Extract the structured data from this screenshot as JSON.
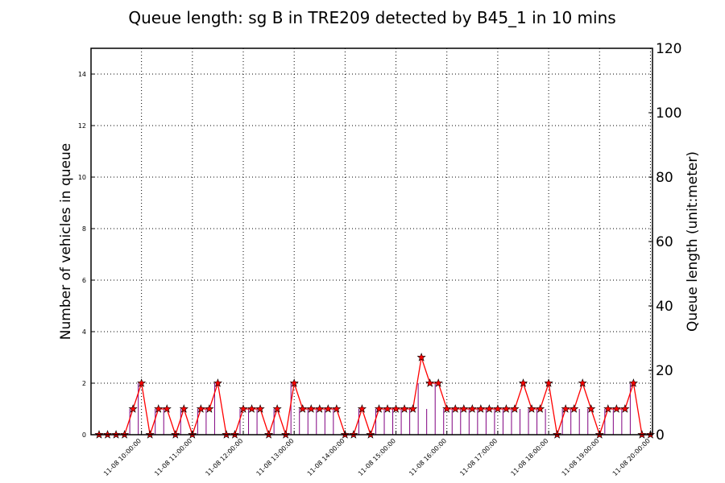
{
  "chart_data": {
    "type": "line",
    "title": "Queue length: sg B in TRE209 detected by B45_1 in 10 mins",
    "ylabel": "Number of vehicles in queue",
    "y2label": "Queue length (unit:meter)",
    "ylim": [
      0,
      15
    ],
    "y2lim": [
      0,
      120
    ],
    "yticks": [
      "0",
      "2",
      "4",
      "6",
      "8",
      "10",
      "12",
      "14"
    ],
    "y2ticks": [
      "0",
      "20",
      "40",
      "60",
      "80",
      "100",
      "120"
    ],
    "xticks": [
      "11-08 10:00:00",
      "11-08 11:00:00",
      "11-08 12:00:00",
      "11-08 13:00:00",
      "11-08 14:00:00",
      "11-08 15:00:00",
      "11-08 16:00:00",
      "11-08 17:00:00",
      "11-08 18:00:00",
      "11-08 19:00:00",
      "11-08 20:00:00"
    ],
    "grid": true,
    "x_start": "11-08 09:10",
    "x_interval_minutes": 10,
    "series": [
      {
        "type": "line",
        "marker": "star",
        "color": "#ff0000",
        "axis": "left",
        "values": [
          0,
          0,
          0,
          0,
          1,
          2,
          0,
          1,
          1,
          0,
          1,
          0,
          1,
          1,
          2,
          0,
          0,
          1,
          1,
          1,
          0,
          1,
          0,
          2,
          1,
          1,
          1,
          1,
          1,
          0,
          0,
          1,
          0,
          1,
          1,
          1,
          1,
          1,
          3,
          2,
          2,
          1,
          1,
          1,
          1,
          1,
          1,
          1,
          1,
          1,
          2,
          1,
          1,
          2,
          0,
          1,
          1,
          2,
          1,
          0,
          1,
          1,
          1,
          2,
          0,
          0
        ]
      },
      {
        "type": "bar",
        "color": "#800080",
        "axis": "right",
        "values": [
          0,
          0,
          0,
          0,
          8,
          16,
          0,
          8,
          8,
          0,
          8,
          0,
          8,
          8,
          16,
          0,
          0,
          8,
          8,
          8,
          0,
          8,
          0,
          16,
          8,
          8,
          8,
          8,
          8,
          0,
          0,
          8,
          0,
          8,
          8,
          8,
          8,
          8,
          16,
          8,
          16,
          8,
          8,
          8,
          8,
          8,
          8,
          8,
          8,
          8,
          8,
          8,
          8,
          8,
          0,
          8,
          8,
          8,
          8,
          0,
          8,
          8,
          8,
          16,
          0,
          0
        ]
      }
    ]
  }
}
